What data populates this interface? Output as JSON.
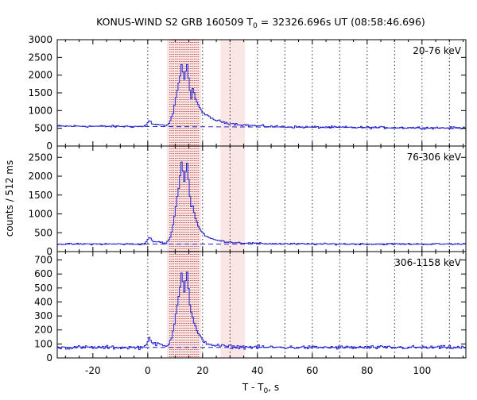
{
  "chart_data": {
    "type": "line",
    "title_prefix": "KONUS-WIND S2 GRB 160509 T",
    "title_sub": "0",
    "title_suffix": " = 32326.696s UT (08:58:46.696)",
    "xlabel_prefix": "T - T",
    "xlabel_sub": "0",
    "xlabel_suffix": ", s",
    "ylabel": "counts / 512 ms",
    "xlim": [
      -33,
      116
    ],
    "x_ticks": [
      -20,
      0,
      20,
      40,
      60,
      80,
      100
    ],
    "x_minor_step": 5,
    "vlines_dotted": [
      0,
      20,
      30,
      40,
      50,
      60,
      70,
      80,
      90,
      100,
      110
    ],
    "burst_fine_vlines": [
      8,
      8.5,
      9,
      9.5,
      10,
      10.5,
      11,
      11.5,
      12,
      12.5,
      13,
      13.5,
      14,
      14.5,
      15,
      15.5,
      16,
      16.5,
      17,
      17.5,
      18,
      18.5
    ],
    "shaded_intervals": [
      [
        7,
        19.5
      ],
      [
        26.5,
        35.5
      ]
    ],
    "shade_color": "#fbe6e6",
    "line_color": "#2222cc",
    "panels": [
      {
        "label": "20-76 keV",
        "ylim": [
          0,
          3000
        ],
        "y_ticks": [
          0,
          500,
          1000,
          1500,
          2000,
          2500,
          3000
        ],
        "background": 550,
        "bg_slope": -0.35,
        "precursor": 170,
        "peak": 2450,
        "peak2": 2250,
        "tail": 480,
        "noise": 22
      },
      {
        "label": "76-306 keV",
        "ylim": [
          0,
          2800
        ],
        "y_ticks": [
          0,
          500,
          1000,
          1500,
          2000,
          2500
        ],
        "background": 200,
        "bg_slope": 0,
        "precursor": 180,
        "peak": 2550,
        "peak2": 2350,
        "tail": 250,
        "noise": 15
      },
      {
        "label": "306-1158 keV",
        "ylim": [
          0,
          760
        ],
        "y_ticks": [
          0,
          100,
          200,
          300,
          400,
          500,
          600,
          700
        ],
        "background": 75,
        "bg_slope": 0,
        "precursor": 70,
        "peak": 650,
        "peak2": 600,
        "tail": 30,
        "noise": 9
      }
    ]
  }
}
